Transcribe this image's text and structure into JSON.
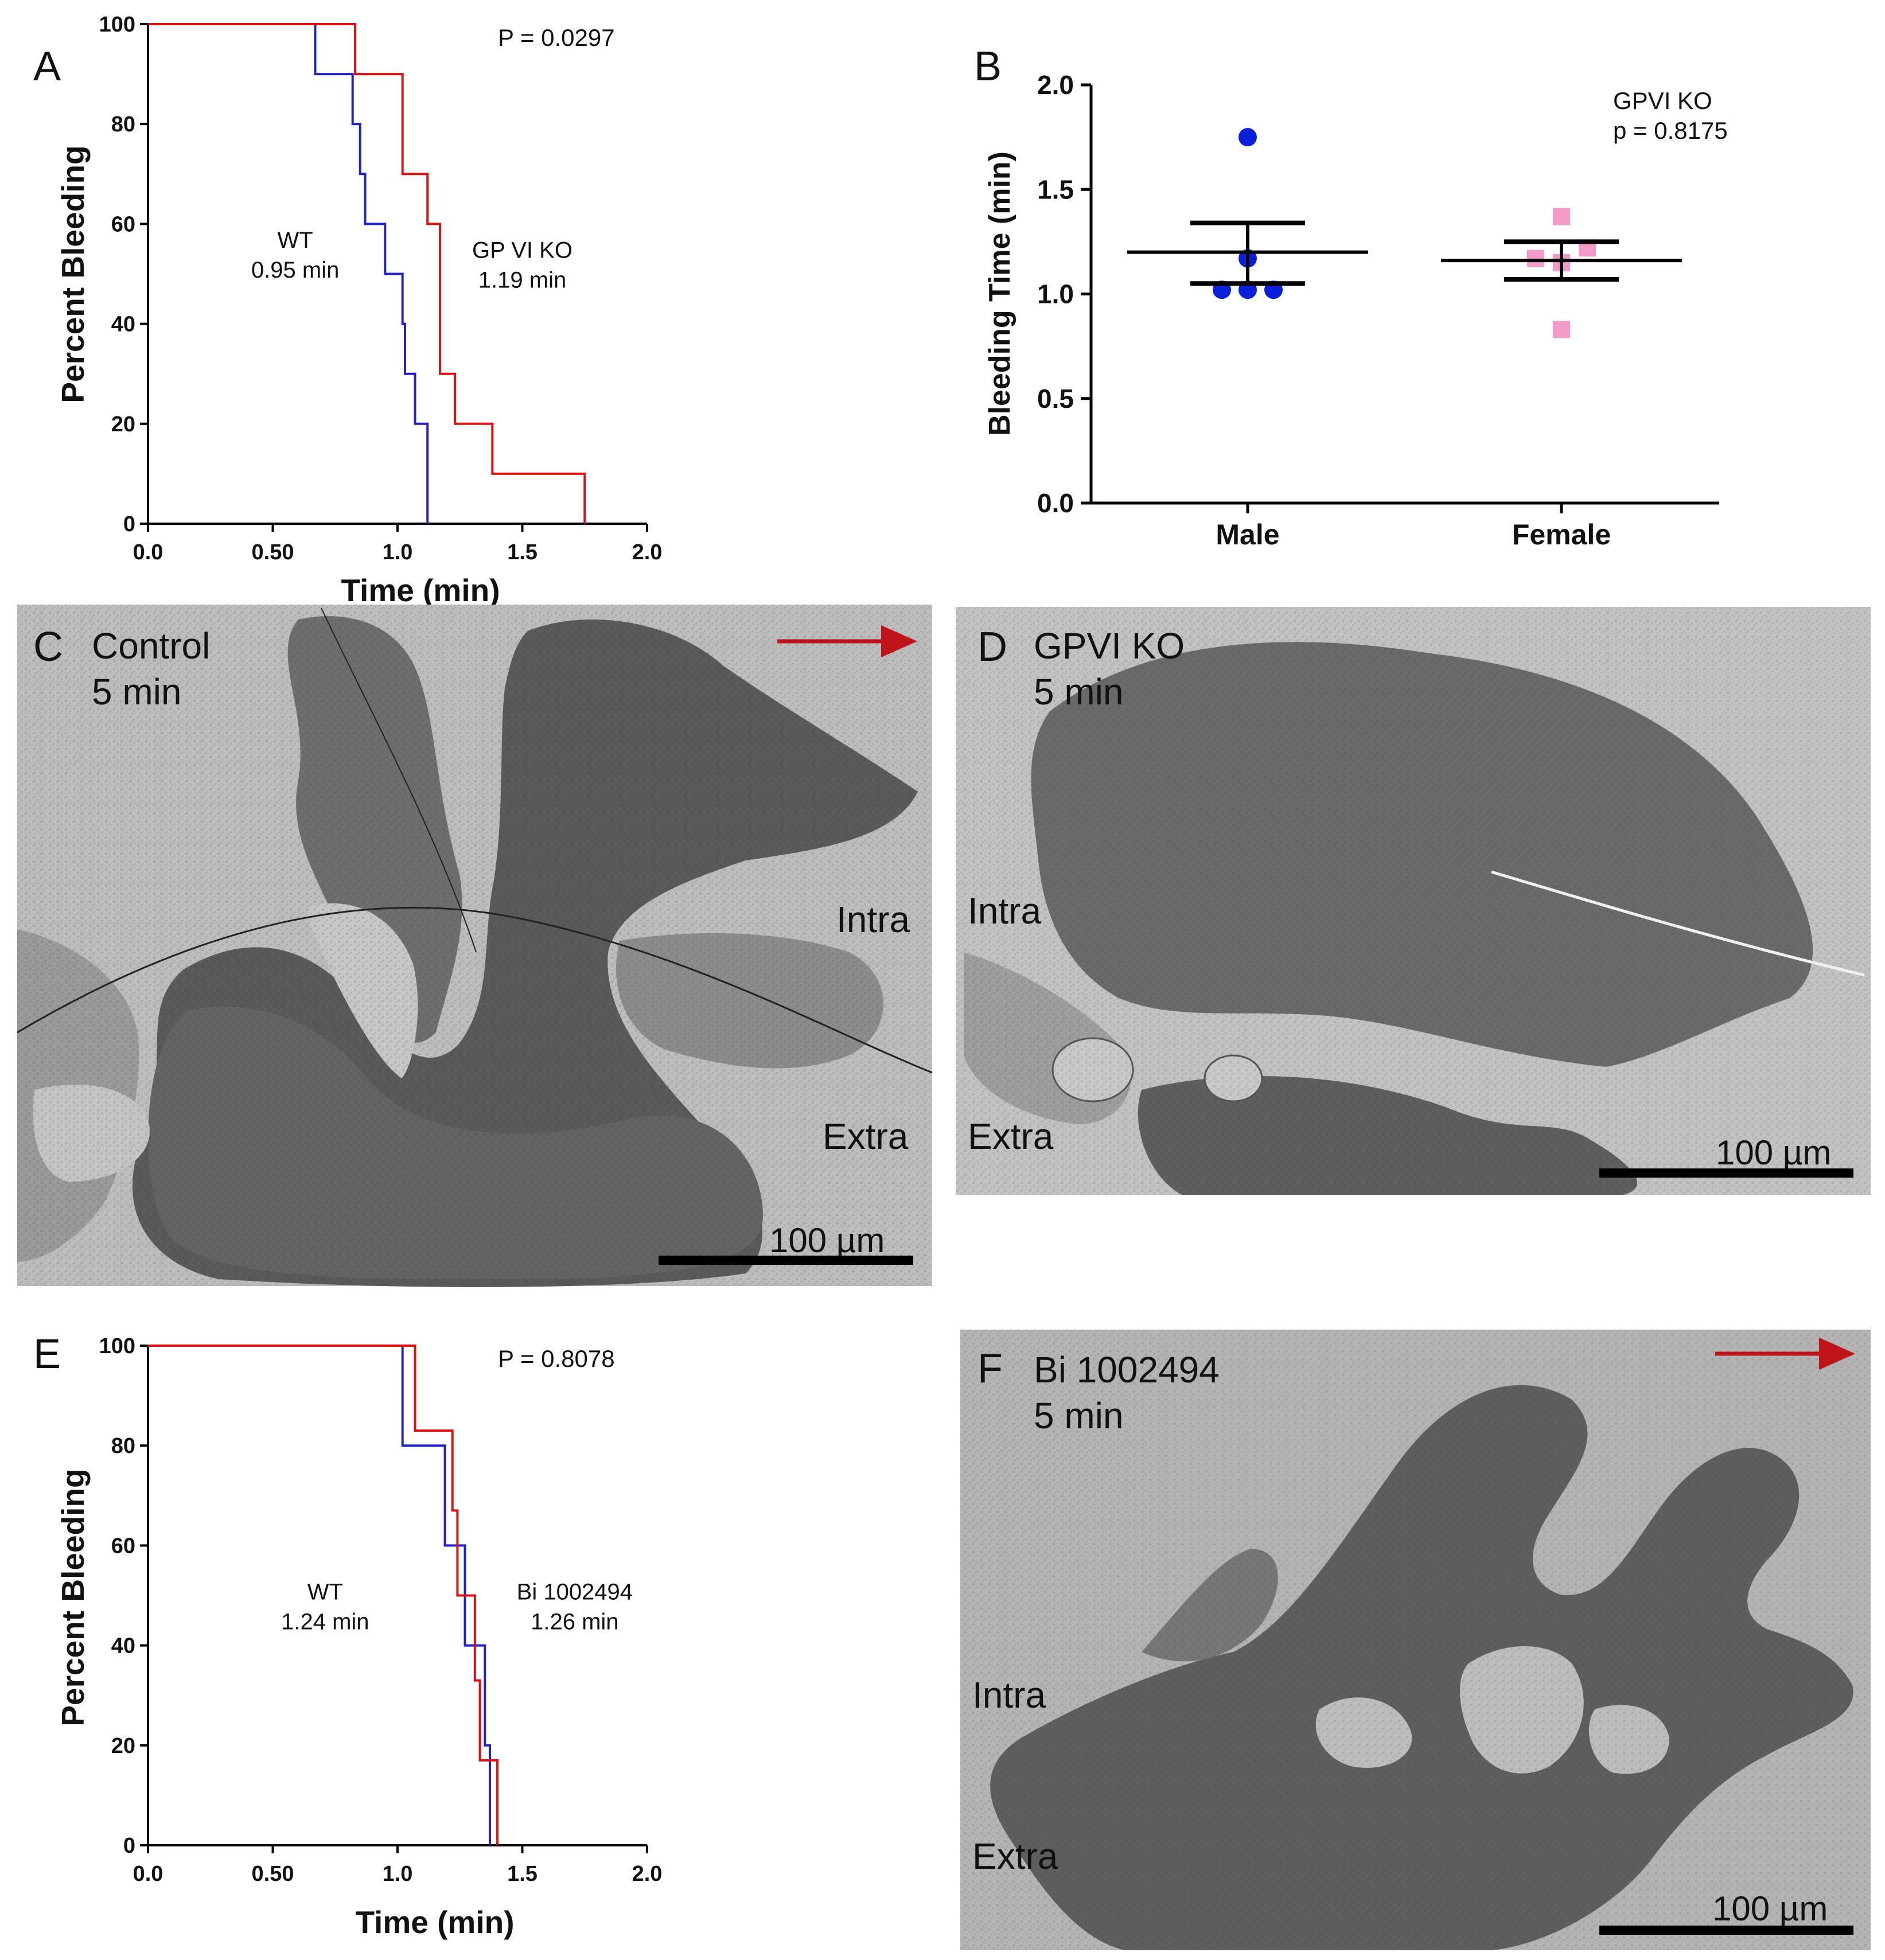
{
  "panel_letters": {
    "a": "A",
    "b": "B",
    "c": "C",
    "d": "D",
    "e": "E",
    "f": "F"
  },
  "colors": {
    "wt": "#2222cc",
    "ko": "#dd1111",
    "male_points": "#0a1fd9",
    "female_points": "#f49ac8",
    "arrow": "#c0141b",
    "micrograph_bg": "#b9b9b9",
    "tissue": "#555555"
  },
  "chart_data": [
    {
      "panel": "A",
      "type": "line",
      "step": true,
      "xlabel": "Time (min)",
      "ylabel": "Percent Bleeding",
      "xlim": [
        0,
        2.0
      ],
      "ylim": [
        0,
        100
      ],
      "xticks": [
        "0.0",
        "0.50",
        "1.0",
        "1.5",
        "2.0"
      ],
      "yticks": [
        "0",
        "20",
        "40",
        "60",
        "80",
        "100"
      ],
      "pvalue": "P = 0.0297",
      "annotations": [
        {
          "line1": "WT",
          "line2": "0.95 min",
          "x": 0.59,
          "y": 52
        },
        {
          "line1": "GP VI KO",
          "line2": "1.19 min",
          "x": 1.5,
          "y": 50
        }
      ],
      "series": [
        {
          "color": "#2222cc",
          "points": [
            [
              0,
              100
            ],
            [
              0.67,
              100
            ],
            [
              0.67,
              90
            ],
            [
              0.82,
              90
            ],
            [
              0.82,
              80
            ],
            [
              0.85,
              80
            ],
            [
              0.85,
              70
            ],
            [
              0.87,
              70
            ],
            [
              0.87,
              60
            ],
            [
              0.95,
              60
            ],
            [
              0.95,
              50
            ],
            [
              1.02,
              50
            ],
            [
              1.02,
              40
            ],
            [
              1.03,
              40
            ],
            [
              1.03,
              30
            ],
            [
              1.07,
              30
            ],
            [
              1.07,
              20
            ],
            [
              1.12,
              20
            ],
            [
              1.12,
              0
            ]
          ]
        },
        {
          "color": "#dd1111",
          "points": [
            [
              0,
              100
            ],
            [
              0.83,
              100
            ],
            [
              0.83,
              90
            ],
            [
              1.02,
              90
            ],
            [
              1.02,
              70
            ],
            [
              1.12,
              70
            ],
            [
              1.12,
              60
            ],
            [
              1.17,
              60
            ],
            [
              1.17,
              30
            ],
            [
              1.23,
              30
            ],
            [
              1.23,
              20
            ],
            [
              1.38,
              20
            ],
            [
              1.38,
              10
            ],
            [
              1.75,
              10
            ],
            [
              1.75,
              0
            ]
          ]
        }
      ]
    },
    {
      "panel": "B",
      "type": "scatter",
      "ylabel": "Bleeding Time (min)",
      "categories": [
        "Male",
        "Female"
      ],
      "ylim": [
        0,
        2.0
      ],
      "yticks": [
        "0.0",
        "0.5",
        "1.0",
        "1.5",
        "2.0"
      ],
      "annotation_line1": "GPVI KO",
      "annotation_line2": "p =  0.8175",
      "series": [
        {
          "category": "Male",
          "color": "#0a1fd9",
          "marker": "circle",
          "values": [
            1.75,
            1.17,
            1.02,
            1.02,
            1.02
          ],
          "mean": 1.2,
          "sem_upper": 1.34,
          "sem_lower": 1.05
        },
        {
          "category": "Female",
          "color": "#f49ac8",
          "marker": "square",
          "values": [
            1.37,
            1.22,
            1.17,
            1.15,
            0.83
          ],
          "mean": 1.16,
          "sem_upper": 1.25,
          "sem_lower": 1.07
        }
      ]
    },
    {
      "panel": "E",
      "type": "line",
      "step": true,
      "xlabel": "Time (min)",
      "ylabel": "Percent Bleeding",
      "xlim": [
        0,
        2.0
      ],
      "ylim": [
        0,
        100
      ],
      "xticks": [
        "0.0",
        "0.50",
        "1.0",
        "1.5",
        "2.0"
      ],
      "yticks": [
        "0",
        "20",
        "40",
        "60",
        "80",
        "100"
      ],
      "pvalue": "P = 0.8078",
      "annotations": [
        {
          "line1": "WT",
          "line2": "1.24 min",
          "x": 0.71,
          "y": 46
        },
        {
          "line1": "Bi 1002494",
          "line2": "1.26 min",
          "x": 1.71,
          "y": 46
        }
      ],
      "series": [
        {
          "color": "#2222cc",
          "points": [
            [
              0,
              100
            ],
            [
              1.02,
              100
            ],
            [
              1.02,
              80
            ],
            [
              1.19,
              80
            ],
            [
              1.19,
              60
            ],
            [
              1.27,
              60
            ],
            [
              1.27,
              40
            ],
            [
              1.35,
              40
            ],
            [
              1.35,
              20
            ],
            [
              1.37,
              20
            ],
            [
              1.37,
              0
            ]
          ]
        },
        {
          "color": "#dd1111",
          "points": [
            [
              0,
              100
            ],
            [
              1.07,
              100
            ],
            [
              1.07,
              83
            ],
            [
              1.22,
              83
            ],
            [
              1.22,
              67
            ],
            [
              1.24,
              67
            ],
            [
              1.24,
              50
            ],
            [
              1.31,
              50
            ],
            [
              1.31,
              33
            ],
            [
              1.33,
              33
            ],
            [
              1.33,
              17
            ],
            [
              1.4,
              17
            ],
            [
              1.4,
              0
            ]
          ]
        }
      ]
    }
  ],
  "micrographs": {
    "c": {
      "line1": "Control",
      "line2": "5 min",
      "intra": "Intra",
      "extra": "Extra",
      "scale": "100 µm",
      "arrow": true
    },
    "d": {
      "line1": "GPVI KO",
      "line2": "5 min",
      "intra": "Intra",
      "extra": "Extra",
      "scale": "100 µm",
      "arrow": false
    },
    "f": {
      "line1": "Bi 1002494",
      "line2": "5 min",
      "intra": "Intra",
      "extra": "Extra",
      "scale": "100 µm",
      "arrow": true
    }
  }
}
